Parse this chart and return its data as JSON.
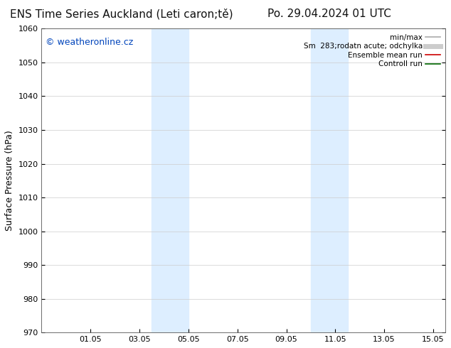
{
  "title_left": "ENS Time Series Auckland (Leti caron;tě)",
  "title_right": "Po. 29.04.2024 01 UTC",
  "ylabel": "Surface Pressure (hPa)",
  "ylim": [
    970,
    1060
  ],
  "yticks": [
    970,
    980,
    990,
    1000,
    1010,
    1020,
    1030,
    1040,
    1050,
    1060
  ],
  "xlim": [
    0,
    16.5
  ],
  "xtick_labels": [
    "01.05",
    "03.05",
    "05.05",
    "07.05",
    "09.05",
    "11.05",
    "13.05",
    "15.05"
  ],
  "xtick_positions": [
    2,
    4,
    6,
    8,
    10,
    12,
    14,
    16
  ],
  "shaded_regions": [
    {
      "start": 4.5,
      "end": 6.0,
      "color": "#ddeeff"
    },
    {
      "start": 11.0,
      "end": 12.5,
      "color": "#ddeeff"
    }
  ],
  "watermark_text": "© weatheronline.cz",
  "watermark_color": "#0044bb",
  "watermark_fontsize": 9,
  "legend_entries": [
    {
      "label": "min/max",
      "color": "#aaaaaa",
      "lw": 1.2,
      "linestyle": "-"
    },
    {
      "label": "Sm  283;rodatn acute; odchylka",
      "color": "#cccccc",
      "lw": 5,
      "linestyle": "-"
    },
    {
      "label": "Ensemble mean run",
      "color": "#cc0000",
      "lw": 1.2,
      "linestyle": "-"
    },
    {
      "label": "Controll run",
      "color": "#006600",
      "lw": 1.2,
      "linestyle": "-"
    }
  ],
  "bg_color": "#ffffff",
  "plot_bg_color": "#ffffff",
  "grid_color": "#cccccc",
  "title_fontsize": 11,
  "axis_label_fontsize": 9,
  "tick_fontsize": 8,
  "legend_fontsize": 7.5
}
